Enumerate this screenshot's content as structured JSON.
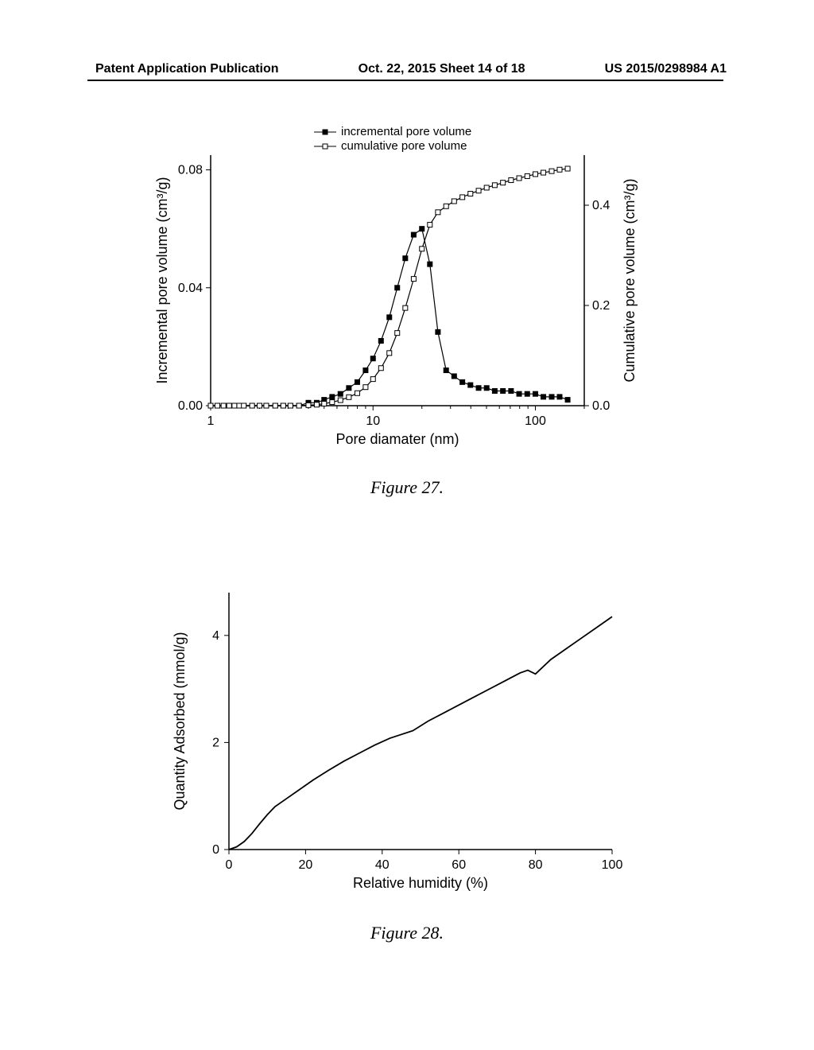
{
  "header": {
    "left": "Patent Application Publication",
    "center": "Oct. 22, 2015  Sheet 14 of 18",
    "right": "US 2015/0298984 A1"
  },
  "fig27": {
    "caption": "Figure 27.",
    "type": "line-scatter-dual-axis",
    "x_label": "Pore diamater (nm)",
    "y1_label": "Incremental pore volume (cm³/g)",
    "y2_label": "Cumulative pore volume (cm³/g)",
    "x_scale": "log",
    "xlim": [
      1,
      200
    ],
    "x_ticks": [
      1,
      10,
      100
    ],
    "y1_lim": [
      0,
      0.085
    ],
    "y1_ticks": [
      0.0,
      0.04,
      0.08
    ],
    "y2_lim": [
      0,
      0.5
    ],
    "y2_ticks": [
      0.0,
      0.2,
      0.4
    ],
    "legend": {
      "items": [
        {
          "label": "incremental pore volume",
          "marker": "filled-square",
          "color": "#000000"
        },
        {
          "label": "cumulative pore volume",
          "marker": "open-square",
          "color": "#000000"
        }
      ]
    },
    "series_incremental": {
      "color": "#000000",
      "marker": "filled-square",
      "x": [
        1.0,
        1.1,
        1.2,
        1.3,
        1.4,
        1.5,
        1.6,
        1.8,
        2.0,
        2.2,
        2.5,
        2.8,
        3.1,
        3.5,
        4.0,
        4.5,
        5.0,
        5.6,
        6.3,
        7.1,
        8.0,
        9.0,
        10.0,
        11.2,
        12.6,
        14.1,
        15.8,
        17.8,
        20.0,
        22.4,
        25.1,
        28.2,
        31.6,
        35.5,
        39.8,
        44.7,
        50.1,
        56.2,
        63.1,
        70.8,
        79.4,
        89.1,
        100,
        112,
        126,
        141,
        158
      ],
      "y": [
        0,
        0,
        0,
        0,
        0,
        0,
        0,
        0,
        0,
        0,
        0,
        0,
        0,
        0,
        0.001,
        0.001,
        0.002,
        0.003,
        0.004,
        0.006,
        0.008,
        0.012,
        0.016,
        0.022,
        0.03,
        0.04,
        0.05,
        0.058,
        0.06,
        0.048,
        0.025,
        0.012,
        0.01,
        0.008,
        0.007,
        0.006,
        0.006,
        0.005,
        0.005,
        0.005,
        0.004,
        0.004,
        0.004,
        0.003,
        0.003,
        0.003,
        0.002
      ]
    },
    "series_cumulative": {
      "color": "#000000",
      "marker": "open-square",
      "x": [
        1.0,
        1.1,
        1.2,
        1.3,
        1.4,
        1.5,
        1.6,
        1.8,
        2.0,
        2.2,
        2.5,
        2.8,
        3.1,
        3.5,
        4.0,
        4.5,
        5.0,
        5.6,
        6.3,
        7.1,
        8.0,
        9.0,
        10.0,
        11.2,
        12.6,
        14.1,
        15.8,
        17.8,
        20.0,
        22.4,
        25.1,
        28.2,
        31.6,
        35.5,
        39.8,
        44.7,
        50.1,
        56.2,
        63.1,
        70.8,
        79.4,
        89.1,
        100,
        112,
        126,
        141,
        158
      ],
      "y": [
        0,
        0,
        0,
        0,
        0,
        0,
        0,
        0,
        0,
        0,
        0,
        0,
        0,
        0,
        0.001,
        0.002,
        0.004,
        0.007,
        0.011,
        0.017,
        0.025,
        0.037,
        0.053,
        0.075,
        0.105,
        0.145,
        0.195,
        0.253,
        0.313,
        0.361,
        0.386,
        0.398,
        0.408,
        0.416,
        0.423,
        0.429,
        0.435,
        0.44,
        0.445,
        0.45,
        0.454,
        0.458,
        0.462,
        0.465,
        0.468,
        0.471,
        0.473
      ]
    },
    "colors": {
      "axis": "#000000",
      "background": "#ffffff"
    },
    "font_sizes": {
      "label": 18,
      "tick": 16,
      "legend": 15
    }
  },
  "fig28": {
    "caption": "Figure 28.",
    "type": "line",
    "x_label": "Relative humidity (%)",
    "y_label": "Quantity Adsorbed (mmol/g)",
    "xlim": [
      0,
      100
    ],
    "x_ticks": [
      0,
      20,
      40,
      60,
      80,
      100
    ],
    "ylim": [
      0,
      4.8
    ],
    "y_ticks": [
      0,
      2,
      4
    ],
    "series": {
      "color": "#000000",
      "x": [
        0,
        2,
        4,
        6,
        8,
        10,
        12,
        15,
        18,
        22,
        26,
        30,
        34,
        38,
        42,
        45,
        48,
        52,
        56,
        60,
        64,
        68,
        72,
        76,
        78,
        80,
        84,
        88,
        92,
        96,
        98,
        100
      ],
      "y": [
        0,
        0.05,
        0.15,
        0.3,
        0.48,
        0.65,
        0.8,
        0.95,
        1.1,
        1.3,
        1.48,
        1.65,
        1.8,
        1.95,
        2.08,
        2.15,
        2.22,
        2.4,
        2.55,
        2.7,
        2.85,
        3.0,
        3.15,
        3.3,
        3.35,
        3.28,
        3.55,
        3.75,
        3.95,
        4.15,
        4.25,
        4.35
      ]
    },
    "colors": {
      "axis": "#000000",
      "background": "#ffffff"
    },
    "font_sizes": {
      "label": 18,
      "tick": 16
    }
  }
}
